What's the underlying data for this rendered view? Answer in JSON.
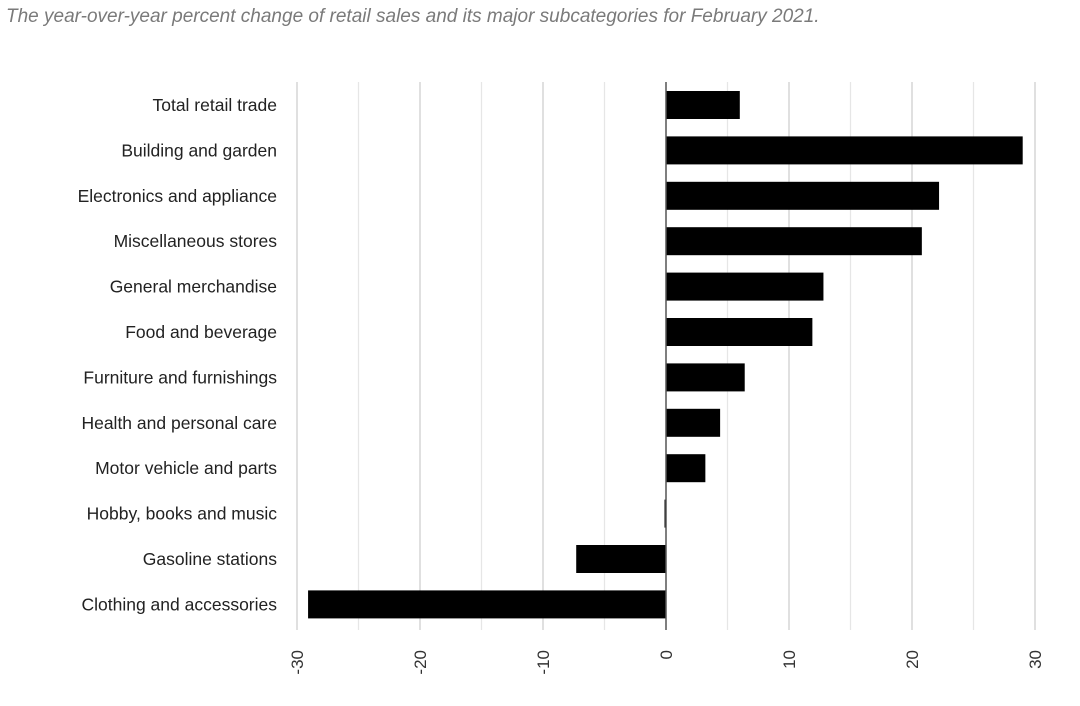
{
  "caption": "The year-over-year percent change of retail sales and its major subcategories for February 2021.",
  "chart_data": {
    "type": "bar",
    "orientation": "horizontal",
    "title": "",
    "xlabel": "",
    "ylabel": "",
    "categories": [
      "Total retail trade",
      "Building and garden",
      "Electronics and appliance",
      "Miscellaneous stores",
      "General merchandise",
      "Food and beverage",
      "Furniture and furnishings",
      "Health and personal care",
      "Motor vehicle and parts",
      "Hobby, books and music",
      "Gasoline stations",
      "Clothing and accessories"
    ],
    "values": [
      6.0,
      29.0,
      22.2,
      20.8,
      12.8,
      11.9,
      6.4,
      4.4,
      3.2,
      -0.1,
      -7.3,
      -29.1
    ],
    "xlim": [
      -30,
      30
    ],
    "xticks": [
      -30,
      -20,
      -10,
      0,
      10,
      20,
      30
    ],
    "tick_labels": [
      "-30",
      "-20",
      "-10",
      "0",
      "10",
      "20",
      "30"
    ],
    "minor_grid_step": 5,
    "grid": true,
    "legend": "none",
    "bar_color": "#000000",
    "grid_color": "#e6e6e6",
    "major_grid_color": "#cccccc"
  }
}
